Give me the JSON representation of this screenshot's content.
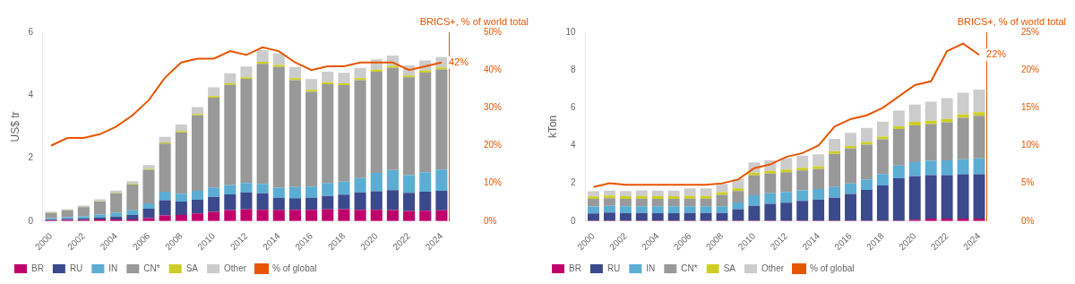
{
  "chart_data": [
    {
      "type": "bar",
      "stacked": true,
      "grid": false,
      "legend": "lower left",
      "title": "BRICS+, % of world total",
      "ylabel": "US$ tr",
      "categories": [
        "2000",
        null,
        "2002",
        null,
        "2004",
        null,
        "2006",
        null,
        "2008",
        null,
        "2010",
        null,
        "2012",
        null,
        "2014",
        null,
        "2016",
        null,
        "2018",
        null,
        "2020",
        null,
        "2022",
        null,
        "2024"
      ],
      "series": [
        {
          "name": "BR",
          "color": "#c0006a",
          "values": [
            0.03,
            0.04,
            0.04,
            0.05,
            0.05,
            0.05,
            0.09,
            0.18,
            0.19,
            0.24,
            0.29,
            0.35,
            0.37,
            0.36,
            0.36,
            0.36,
            0.36,
            0.37,
            0.38,
            0.36,
            0.36,
            0.35,
            0.32,
            0.33,
            0.34
          ]
        },
        {
          "name": "RU",
          "color": "#3b4a8c",
          "values": [
            0.02,
            0.03,
            0.04,
            0.06,
            0.09,
            0.14,
            0.3,
            0.48,
            0.43,
            0.44,
            0.48,
            0.5,
            0.54,
            0.52,
            0.38,
            0.37,
            0.38,
            0.43,
            0.46,
            0.55,
            0.59,
            0.63,
            0.58,
            0.6,
            0.62
          ]
        },
        {
          "name": "IN",
          "color": "#5badd4",
          "values": [
            0.04,
            0.05,
            0.07,
            0.1,
            0.13,
            0.15,
            0.17,
            0.27,
            0.25,
            0.28,
            0.3,
            0.3,
            0.3,
            0.3,
            0.32,
            0.35,
            0.36,
            0.41,
            0.41,
            0.46,
            0.58,
            0.64,
            0.56,
            0.62,
            0.68
          ]
        },
        {
          "name": "CN*",
          "color": "#999999",
          "values": [
            0.17,
            0.22,
            0.29,
            0.41,
            0.61,
            0.82,
            1.07,
            1.53,
            1.95,
            2.4,
            2.85,
            3.18,
            3.31,
            3.82,
            3.84,
            3.4,
            3.01,
            3.14,
            3.07,
            3.11,
            3.22,
            3.25,
            3.11,
            3.17,
            3.18
          ]
        },
        {
          "name": "SA",
          "color": "#cece28",
          "values": [
            0.01,
            0.01,
            0.01,
            0.01,
            0.02,
            0.02,
            0.03,
            0.04,
            0.04,
            0.04,
            0.05,
            0.05,
            0.05,
            0.06,
            0.06,
            0.06,
            0.06,
            0.06,
            0.06,
            0.06,
            0.06,
            0.06,
            0.06,
            0.06,
            0.06
          ]
        },
        {
          "name": "Other",
          "color": "#cccccc",
          "values": [
            0.03,
            0.03,
            0.04,
            0.06,
            0.07,
            0.09,
            0.12,
            0.18,
            0.21,
            0.22,
            0.28,
            0.32,
            0.34,
            0.37,
            0.37,
            0.36,
            0.34,
            0.34,
            0.33,
            0.33,
            0.33,
            0.33,
            0.32,
            0.32,
            0.33
          ]
        },
        {
          "name": "% of global",
          "type": "line",
          "axis": "y2",
          "color": "#e85500",
          "values": [
            0.2,
            0.22,
            0.22,
            0.23,
            0.25,
            0.28,
            0.32,
            0.38,
            0.42,
            0.43,
            0.43,
            0.45,
            0.44,
            0.46,
            0.45,
            0.42,
            0.4,
            0.41,
            0.41,
            0.42,
            0.42,
            0.42,
            0.4,
            0.41,
            0.42
          ]
        }
      ],
      "ylim": [
        0,
        6
      ],
      "yticks": [
        0,
        2,
        4,
        6
      ],
      "y2lim": [
        0,
        0.5
      ],
      "y2ticks": [
        {
          "value": 0,
          "label": "0%"
        },
        {
          "value": 0.1,
          "label": "10%"
        },
        {
          "value": 0.2,
          "label": "20%"
        },
        {
          "value": 0.3,
          "label": "30%"
        },
        {
          "value": 0.4,
          "label": "40%"
        },
        {
          "value": 0.5,
          "label": "50%"
        }
      ],
      "annotations": [
        {
          "text": "42%",
          "x": "2024",
          "y": 0.42,
          "axis": "y2"
        }
      ]
    },
    {
      "type": "bar",
      "stacked": true,
      "grid": false,
      "legend": "lower left",
      "title": "BRICS+, % of world total",
      "ylabel": "kTon",
      "categories": [
        "2000",
        null,
        "2002",
        null,
        "2004",
        null,
        "2006",
        null,
        "2008",
        null,
        "2010",
        null,
        "2012",
        null,
        "2014",
        null,
        "2016",
        null,
        "2018",
        null,
        "2020",
        null,
        "2022",
        null,
        "2024"
      ],
      "series": [
        {
          "name": "BR",
          "color": "#c0006a",
          "values": [
            0.03,
            0.03,
            0.03,
            0.03,
            0.03,
            0.03,
            0.03,
            0.03,
            0.03,
            0.03,
            0.03,
            0.03,
            0.03,
            0.03,
            0.03,
            0.03,
            0.03,
            0.03,
            0.03,
            0.03,
            0.07,
            0.13,
            0.13,
            0.13,
            0.13
          ]
        },
        {
          "name": "RU",
          "color": "#3b4a8c",
          "values": [
            0.38,
            0.42,
            0.39,
            0.4,
            0.39,
            0.39,
            0.4,
            0.4,
            0.4,
            0.6,
            0.78,
            0.88,
            0.95,
            1.04,
            1.11,
            1.21,
            1.41,
            1.62,
            1.86,
            2.24,
            2.3,
            2.3,
            2.3,
            2.35,
            2.35
          ]
        },
        {
          "name": "IN",
          "color": "#5badd4",
          "values": [
            0.36,
            0.36,
            0.36,
            0.36,
            0.36,
            0.36,
            0.36,
            0.36,
            0.36,
            0.36,
            0.56,
            0.56,
            0.56,
            0.56,
            0.56,
            0.56,
            0.56,
            0.56,
            0.6,
            0.67,
            0.75,
            0.76,
            0.79,
            0.8,
            0.84
          ]
        },
        {
          "name": "CN*",
          "color": "#999999",
          "values": [
            0.4,
            0.4,
            0.4,
            0.4,
            0.4,
            0.4,
            0.4,
            0.4,
            0.6,
            0.6,
            1.05,
            1.05,
            1.05,
            1.05,
            1.05,
            1.76,
            1.84,
            1.84,
            1.84,
            1.94,
            1.95,
            1.95,
            2.01,
            2.19,
            2.26
          ]
        },
        {
          "name": "SA",
          "color": "#cece28",
          "values": [
            0.14,
            0.14,
            0.14,
            0.14,
            0.14,
            0.14,
            0.14,
            0.14,
            0.14,
            0.14,
            0.14,
            0.14,
            0.14,
            0.14,
            0.14,
            0.14,
            0.14,
            0.14,
            0.14,
            0.14,
            0.18,
            0.18,
            0.18,
            0.18,
            0.18
          ]
        },
        {
          "name": "Other",
          "color": "#cccccc",
          "values": [
            0.27,
            0.27,
            0.27,
            0.3,
            0.3,
            0.3,
            0.4,
            0.4,
            0.44,
            0.5,
            0.55,
            0.56,
            0.6,
            0.65,
            0.65,
            0.65,
            0.7,
            0.75,
            0.8,
            0.83,
            0.92,
            1.0,
            1.1,
            1.15,
            1.2
          ]
        },
        {
          "name": "% of global",
          "type": "line",
          "axis": "y2",
          "color": "#e85500",
          "values": [
            0.045,
            0.05,
            0.048,
            0.048,
            0.048,
            0.048,
            0.048,
            0.048,
            0.05,
            0.055,
            0.07,
            0.075,
            0.085,
            0.09,
            0.1,
            0.125,
            0.135,
            0.14,
            0.15,
            0.165,
            0.18,
            0.185,
            0.225,
            0.235,
            0.22
          ]
        }
      ],
      "ylim": [
        0,
        10
      ],
      "yticks": [
        0,
        2,
        4,
        6,
        8,
        10
      ],
      "y2lim": [
        0,
        0.25
      ],
      "y2ticks": [
        {
          "value": 0,
          "label": "0%"
        },
        {
          "value": 0.05,
          "label": "5%"
        },
        {
          "value": 0.1,
          "label": "10%"
        },
        {
          "value": 0.15,
          "label": "15%"
        },
        {
          "value": 0.2,
          "label": "20%"
        },
        {
          "value": 0.25,
          "label": "25%"
        }
      ],
      "annotations": [
        {
          "text": "22%",
          "x": "2024",
          "y": 0.22,
          "axis": "y2"
        }
      ]
    }
  ]
}
